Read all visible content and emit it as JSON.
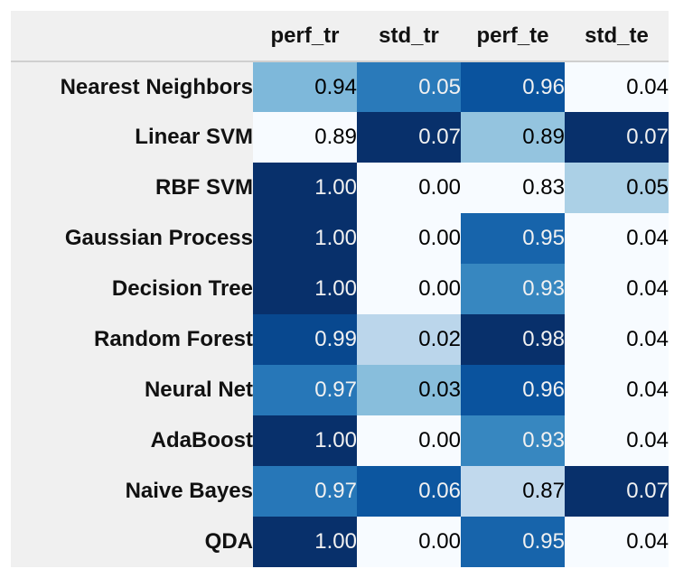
{
  "chart_data": {
    "type": "heatmap",
    "columns": [
      "perf_tr",
      "std_tr",
      "perf_te",
      "std_te"
    ],
    "rows": [
      {
        "label": "Nearest Neighbors",
        "values": [
          0.94,
          0.05,
          0.96,
          0.04
        ],
        "display": [
          "0.94",
          "0.05",
          "0.96",
          "0.04"
        ]
      },
      {
        "label": "Linear SVM",
        "values": [
          0.89,
          0.07,
          0.89,
          0.07
        ],
        "display": [
          "0.89",
          "0.07",
          "0.89",
          "0.07"
        ]
      },
      {
        "label": "RBF SVM",
        "values": [
          1.0,
          0.0,
          0.83,
          0.05
        ],
        "display": [
          "1.00",
          "0.00",
          "0.83",
          "0.05"
        ]
      },
      {
        "label": "Gaussian Process",
        "values": [
          1.0,
          0.0,
          0.95,
          0.04
        ],
        "display": [
          "1.00",
          "0.00",
          "0.95",
          "0.04"
        ]
      },
      {
        "label": "Decision Tree",
        "values": [
          1.0,
          0.0,
          0.93,
          0.04
        ],
        "display": [
          "1.00",
          "0.00",
          "0.93",
          "0.04"
        ]
      },
      {
        "label": "Random Forest",
        "values": [
          0.99,
          0.02,
          0.98,
          0.04
        ],
        "display": [
          "0.99",
          "0.02",
          "0.98",
          "0.04"
        ]
      },
      {
        "label": "Neural Net",
        "values": [
          0.97,
          0.03,
          0.96,
          0.04
        ],
        "display": [
          "0.97",
          "0.03",
          "0.96",
          "0.04"
        ]
      },
      {
        "label": "AdaBoost",
        "values": [
          1.0,
          0.0,
          0.93,
          0.04
        ],
        "display": [
          "1.00",
          "0.00",
          "0.93",
          "0.04"
        ]
      },
      {
        "label": "Naive Bayes",
        "values": [
          0.97,
          0.06,
          0.87,
          0.07
        ],
        "display": [
          "0.97",
          "0.06",
          "0.87",
          "0.07"
        ]
      },
      {
        "label": "QDA",
        "values": [
          1.0,
          0.0,
          0.95,
          0.04
        ],
        "display": [
          "1.00",
          "0.00",
          "0.95",
          "0.04"
        ]
      }
    ],
    "colormap": "Blues",
    "color_scale": "per-column",
    "colors": {
      "low": "#f7fbff",
      "high": "#08306b",
      "text_light": "#f1f1f1",
      "text_dark": "#000000"
    }
  }
}
